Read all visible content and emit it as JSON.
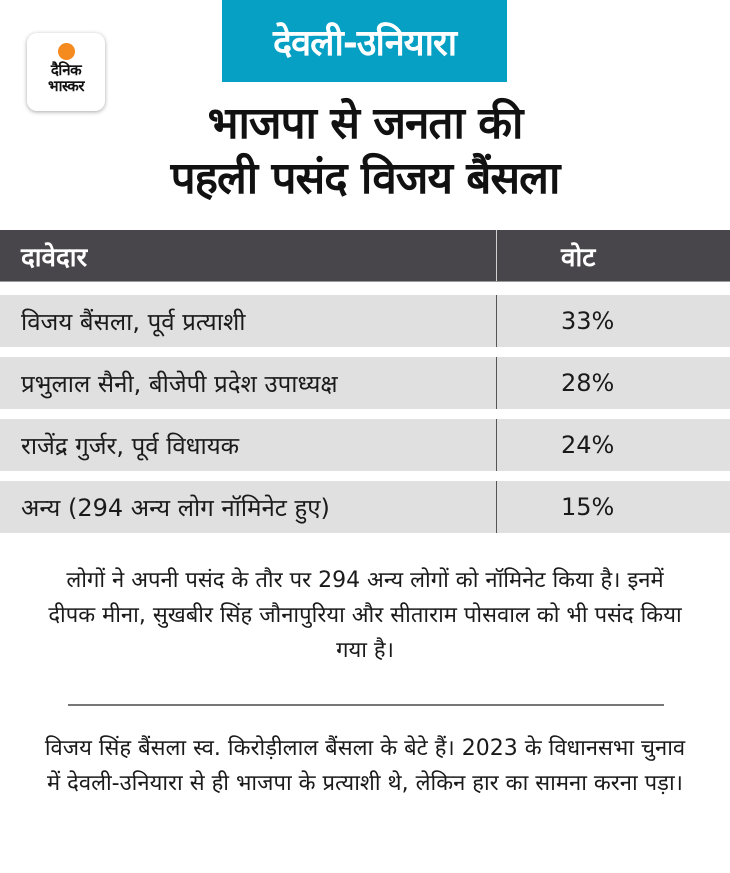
{
  "logo": {
    "line1": "दैनिक",
    "line2": "भास्कर",
    "sun_color": "#f58a1f"
  },
  "badge": {
    "label": "देवली-उनियारा",
    "color": "#05a0c4"
  },
  "headline": {
    "line1": "भाजपा से जनता की",
    "line2": "पहली पसंद विजय बैंसला"
  },
  "table": {
    "headers": [
      "दावेदार",
      "वोट"
    ],
    "header_color": "#48464a",
    "row_color": "#e0e0e0",
    "rows": [
      {
        "candidate": "विजय बैंसला, पूर्व प्रत्याशी",
        "vote": "33%"
      },
      {
        "candidate": "प्रभुलाल सैनी, बीजेपी प्रदेश उपाध्यक्ष",
        "vote": "28%"
      },
      {
        "candidate": "राजेंद्र गुर्जर, पूर्व विधायक",
        "vote": "24%"
      },
      {
        "candidate": "अन्य (294 अन्य लोग नॉमिनेट हुए)",
        "vote": "15%"
      }
    ]
  },
  "notes": {
    "para1": "लोगों ने अपनी पसंद के तौर पर 294 अन्य लोगों को नॉमिनेट किया है। इनमें दीपक मीना, सुखबीर सिंह जौनापुरिया और सीताराम पोसवाल को भी पसंद किया गया है।",
    "para2": "विजय सिंह बैंसला स्व. किरोड़ीलाल बैंसला के बेटे हैं। 2023 के विधानसभा चुनाव में देवली-उनियारा से ही भाजपा के प्रत्याशी थे, लेकिन हार का सामना करना पड़ा।"
  }
}
